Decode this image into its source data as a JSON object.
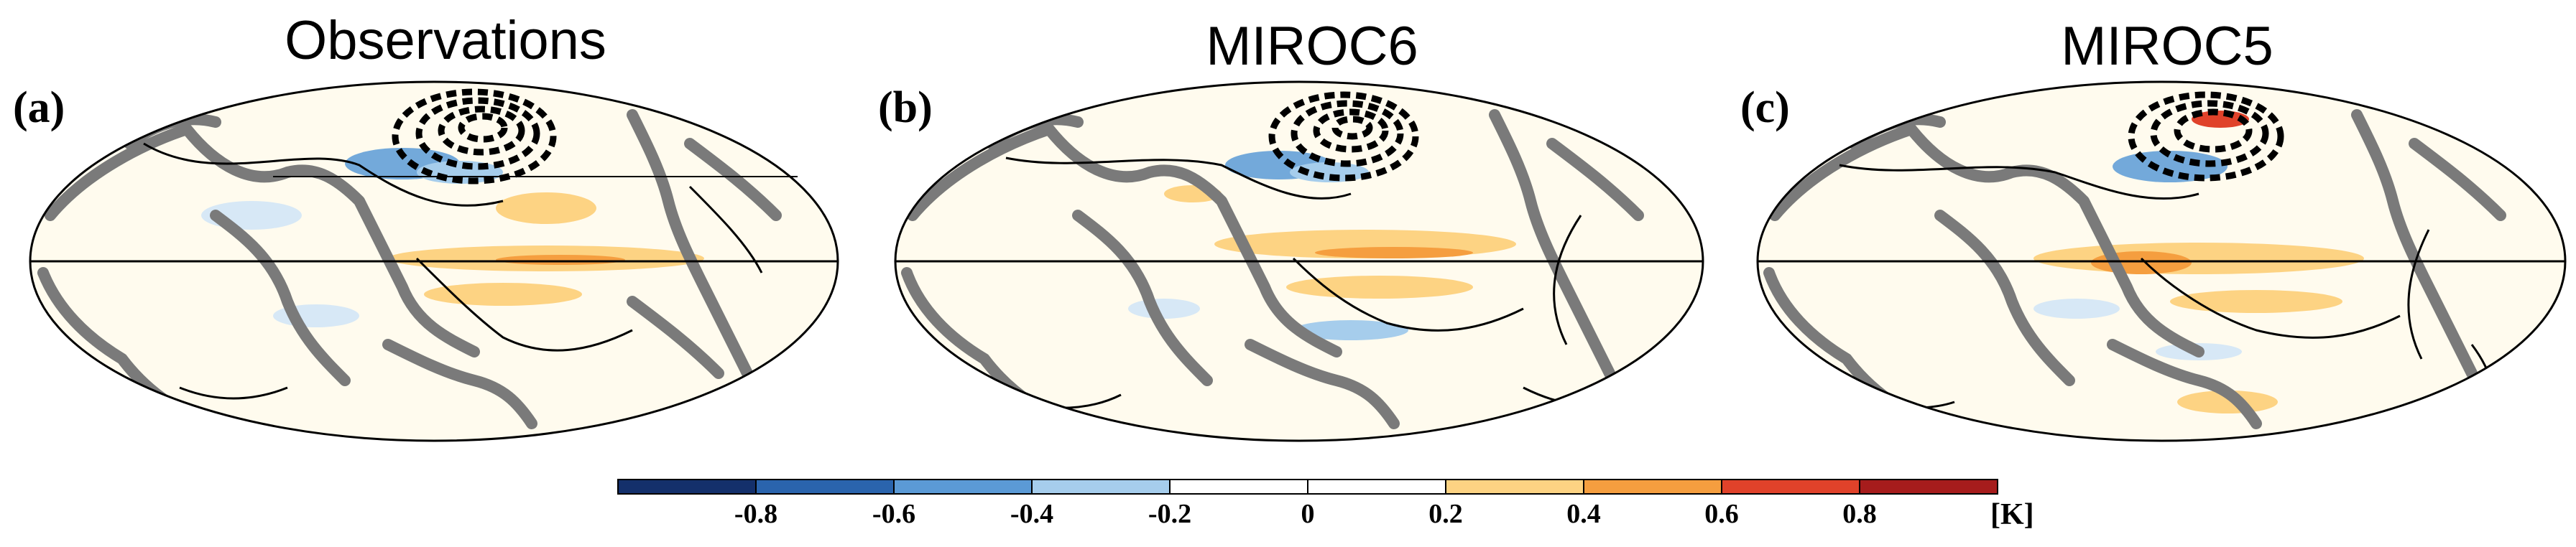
{
  "chart_data": [
    {
      "type": "heatmap",
      "title": "Observations",
      "panel_label": "(a)",
      "projection": "mollweide",
      "features": {
        "coastlines": "gray",
        "equator_line": true,
        "black_contours": true,
        "dashed_contours_north_pacific": true
      }
    },
    {
      "type": "heatmap",
      "title": "MIROC6",
      "panel_label": "(b)",
      "projection": "mollweide",
      "features": {
        "coastlines": "gray",
        "equator_line": true,
        "black_contours": true,
        "dashed_contours_north_pacific": true
      }
    },
    {
      "type": "heatmap",
      "title": "MIROC5",
      "panel_label": "(c)",
      "projection": "mollweide",
      "features": {
        "coastlines": "gray",
        "equator_line": true,
        "black_contours": true,
        "dashed_contours_north_pacific": true
      }
    }
  ],
  "colorbar": {
    "unit": "[K]",
    "ticks": [
      "-0.8",
      "-0.6",
      "-0.4",
      "-0.2",
      "0",
      "0.2",
      "0.4",
      "0.6",
      "0.8"
    ],
    "colors": [
      "#14306b",
      "#2a64ad",
      "#5b9ad6",
      "#a6cdec",
      "#ffffff",
      "#fdd383",
      "#f59e3f",
      "#e0422a",
      "#a61c1c"
    ],
    "range": [
      -1.0,
      1.0
    ]
  }
}
